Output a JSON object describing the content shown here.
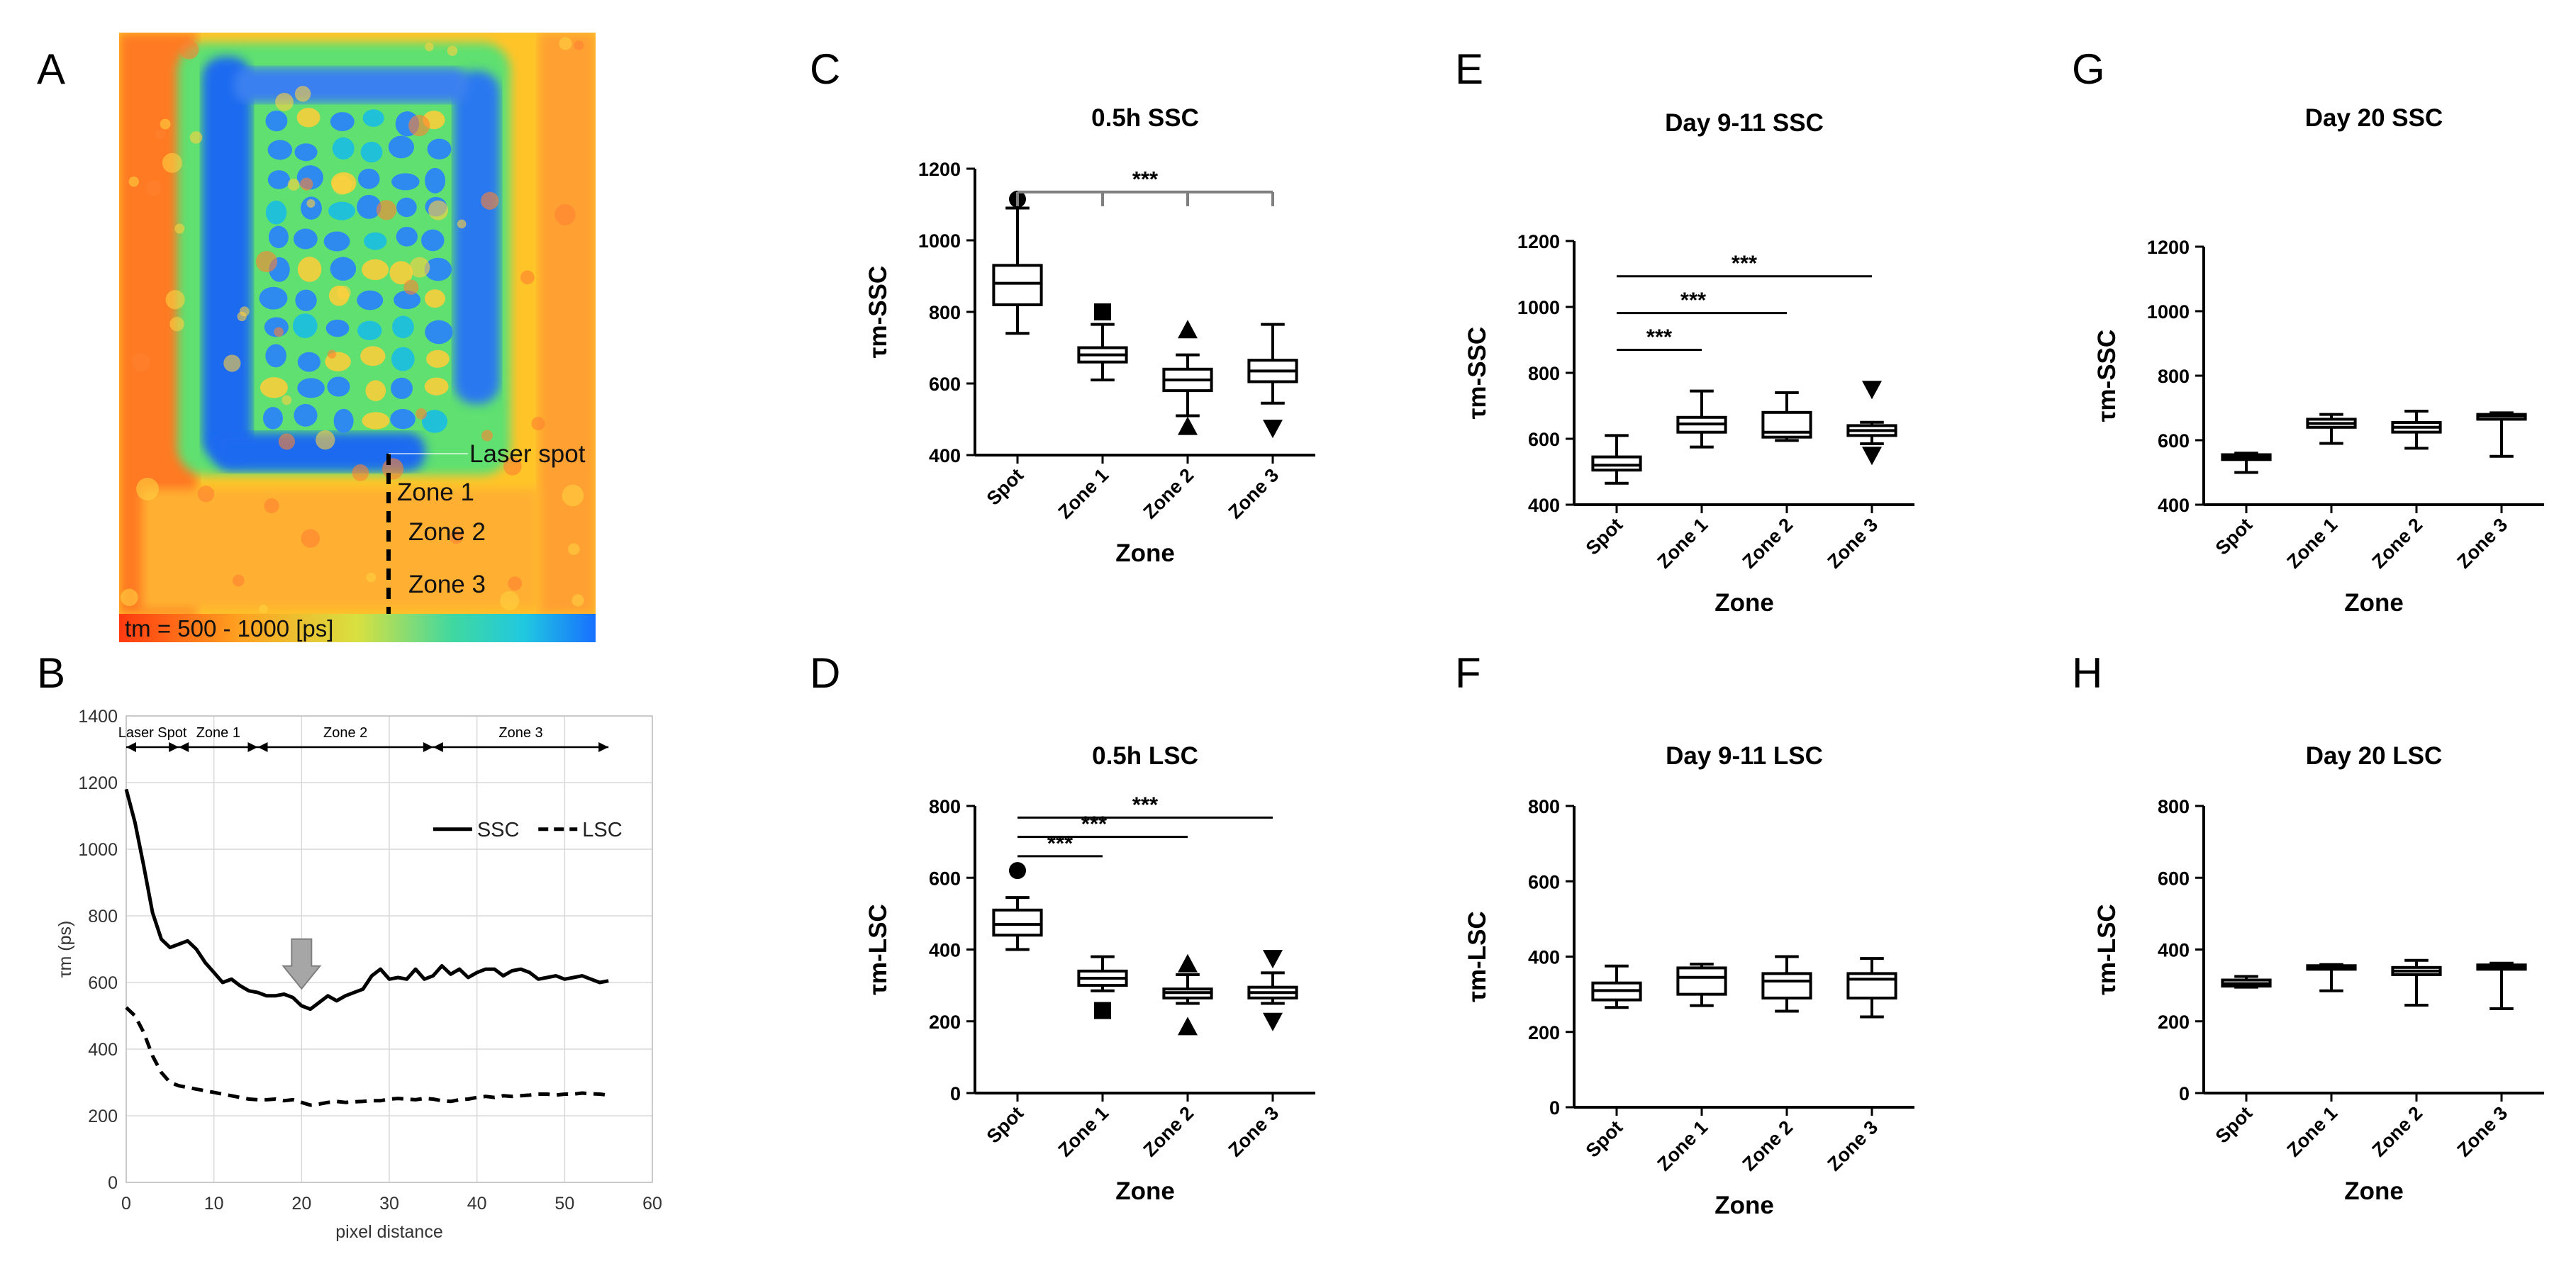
{
  "panel_letters": [
    "A",
    "B",
    "C",
    "D",
    "E",
    "F",
    "G",
    "H"
  ],
  "heatmap": {
    "annotations": [
      "Laser spot",
      "Zone 1",
      "Zone 2",
      "Zone 3"
    ],
    "scale_label": "tm = 500 - 1000 [ps]"
  },
  "chart_data": [
    {
      "panel": "B",
      "type": "line",
      "xlabel": "pixel distance",
      "ylabel": "τm (ps)",
      "xlim": [
        0,
        60
      ],
      "ylim": [
        0,
        1400
      ],
      "xticks": [
        0,
        10,
        20,
        30,
        40,
        50,
        60
      ],
      "yticks": [
        0,
        200,
        400,
        600,
        800,
        1000,
        1200,
        1400
      ],
      "grid": true,
      "legend_position": "top-right",
      "regions": [
        {
          "label": "Laser Spot",
          "from": 0,
          "to": 6
        },
        {
          "label": "Zone 1",
          "from": 6,
          "to": 15
        },
        {
          "label": "Zone 2",
          "from": 15,
          "to": 35
        },
        {
          "label": "Zone 3",
          "from": 35,
          "to": 55
        }
      ],
      "series": [
        {
          "name": "SSC",
          "style": "solid",
          "x": [
            0,
            1,
            2,
            3,
            4,
            5,
            6,
            7,
            8,
            9,
            10,
            11,
            12,
            13,
            14,
            15,
            16,
            17,
            18,
            19,
            20,
            21,
            22,
            23,
            24,
            25,
            26,
            27,
            28,
            29,
            30,
            31,
            32,
            33,
            34,
            35,
            36,
            37,
            38,
            39,
            40,
            41,
            42,
            43,
            44,
            45,
            46,
            47,
            48,
            49,
            50,
            51,
            52,
            53,
            54,
            55
          ],
          "y": [
            1180,
            1080,
            950,
            810,
            730,
            705,
            715,
            725,
            700,
            660,
            630,
            600,
            610,
            590,
            575,
            570,
            560,
            560,
            565,
            555,
            530,
            520,
            540,
            560,
            545,
            560,
            570,
            580,
            620,
            640,
            610,
            615,
            610,
            640,
            610,
            620,
            650,
            625,
            640,
            615,
            630,
            640,
            640,
            620,
            635,
            640,
            630,
            610,
            615,
            620,
            610,
            615,
            620,
            610,
            600,
            605
          ]
        },
        {
          "name": "LSC",
          "style": "dashed",
          "x": [
            0,
            1,
            2,
            3,
            4,
            5,
            6,
            7,
            8,
            9,
            10,
            11,
            12,
            13,
            14,
            15,
            16,
            17,
            18,
            19,
            20,
            21,
            22,
            23,
            24,
            25,
            26,
            27,
            28,
            29,
            30,
            31,
            32,
            33,
            34,
            35,
            36,
            37,
            38,
            39,
            40,
            41,
            42,
            43,
            44,
            45,
            46,
            47,
            48,
            49,
            50,
            51,
            52,
            53,
            54,
            55
          ],
          "y": [
            525,
            500,
            450,
            380,
            330,
            300,
            290,
            285,
            280,
            275,
            270,
            265,
            260,
            255,
            250,
            248,
            248,
            250,
            245,
            248,
            240,
            232,
            235,
            240,
            243,
            240,
            242,
            243,
            245,
            245,
            250,
            252,
            250,
            248,
            252,
            250,
            245,
            243,
            248,
            250,
            255,
            258,
            255,
            260,
            258,
            260,
            262,
            265,
            265,
            262,
            265,
            265,
            268,
            266,
            265,
            262
          ]
        }
      ],
      "annotation": "gray down-arrow at x≈20"
    },
    {
      "panel": "C",
      "type": "box",
      "title": "0.5h SSC",
      "xlabel": "Zone",
      "ylabel": "τm-SSC",
      "categories": [
        "Spot",
        "Zone 1",
        "Zone 2",
        "Zone 3"
      ],
      "ylim": [
        400,
        1200
      ],
      "yticks": [
        400,
        600,
        800,
        1000,
        1200
      ],
      "boxes": [
        {
          "min": 740,
          "q1": 820,
          "median": 880,
          "q3": 930,
          "max": 1090,
          "outliers": [
            1115
          ],
          "outlier_marker": "circle"
        },
        {
          "min": 610,
          "q1": 660,
          "median": 680,
          "q3": 700,
          "max": 765,
          "outliers": [
            800
          ],
          "outlier_marker": "square"
        },
        {
          "min": 510,
          "q1": 580,
          "median": 610,
          "q3": 640,
          "max": 680,
          "outliers": [
            750,
            480
          ],
          "outlier_marker": "triangle-up"
        },
        {
          "min": 545,
          "q1": 605,
          "median": 635,
          "q3": 665,
          "max": 765,
          "outliers": [
            475
          ],
          "outlier_marker": "triangle-down"
        }
      ],
      "significance": [
        {
          "label": "***",
          "from": "Spot",
          "to": [
            "Zone 1",
            "Zone 2",
            "Zone 3"
          ],
          "style": "bracket"
        }
      ]
    },
    {
      "panel": "D",
      "type": "box",
      "title": "0.5h LSC",
      "xlabel": "Zone",
      "ylabel": "τm-LSC",
      "categories": [
        "Spot",
        "Zone 1",
        "Zone 2",
        "Zone 3"
      ],
      "ylim": [
        0,
        800
      ],
      "yticks": [
        0,
        200,
        400,
        600,
        800
      ],
      "boxes": [
        {
          "min": 400,
          "q1": 440,
          "median": 470,
          "q3": 510,
          "max": 545,
          "outliers": [
            620
          ],
          "outlier_marker": "circle"
        },
        {
          "min": 285,
          "q1": 300,
          "median": 320,
          "q3": 340,
          "max": 380,
          "outliers": [
            230
          ],
          "outlier_marker": "square"
        },
        {
          "min": 250,
          "q1": 265,
          "median": 280,
          "q3": 290,
          "max": 330,
          "outliers": [
            360,
            185
          ],
          "outlier_marker": "triangle-up"
        },
        {
          "min": 250,
          "q1": 265,
          "median": 280,
          "q3": 295,
          "max": 335,
          "outliers": [
            375,
            200
          ],
          "outlier_marker": "triangle-down"
        }
      ],
      "significance": [
        {
          "label": "***",
          "from": "Spot",
          "to": "Zone 1"
        },
        {
          "label": "***",
          "from": "Spot",
          "to": "Zone 2"
        },
        {
          "label": "***",
          "from": "Spot",
          "to": "Zone 3"
        }
      ]
    },
    {
      "panel": "E",
      "type": "box",
      "title": "Day 9-11 SSC",
      "xlabel": "Zone",
      "ylabel": "τm-SSC",
      "categories": [
        "Spot",
        "Zone 1",
        "Zone 2",
        "Zone 3"
      ],
      "ylim": [
        400,
        1200
      ],
      "yticks": [
        400,
        600,
        800,
        1000,
        1200
      ],
      "boxes": [
        {
          "min": 465,
          "q1": 505,
          "median": 520,
          "q3": 545,
          "max": 610,
          "outliers": []
        },
        {
          "min": 575,
          "q1": 620,
          "median": 645,
          "q3": 665,
          "max": 745,
          "outliers": []
        },
        {
          "min": 595,
          "q1": 605,
          "median": 620,
          "q3": 680,
          "max": 740,
          "outliers": []
        },
        {
          "min": 585,
          "q1": 610,
          "median": 625,
          "q3": 640,
          "max": 650,
          "outliers": [
            750,
            550
          ],
          "outlier_marker": "triangle-down"
        }
      ],
      "significance": [
        {
          "label": "***",
          "from": "Spot",
          "to": "Zone 1"
        },
        {
          "label": "***",
          "from": "Spot",
          "to": "Zone 2"
        },
        {
          "label": "***",
          "from": "Spot",
          "to": "Zone 3"
        }
      ]
    },
    {
      "panel": "F",
      "type": "box",
      "title": "Day 9-11 LSC",
      "xlabel": "Zone",
      "ylabel": "τm-LSC",
      "categories": [
        "Spot",
        "Zone 1",
        "Zone 2",
        "Zone 3"
      ],
      "ylim": [
        0,
        800
      ],
      "yticks": [
        0,
        200,
        400,
        600,
        800
      ],
      "boxes": [
        {
          "min": 265,
          "q1": 285,
          "median": 310,
          "q3": 330,
          "max": 375,
          "outliers": []
        },
        {
          "min": 270,
          "q1": 300,
          "median": 345,
          "q3": 370,
          "max": 380,
          "outliers": []
        },
        {
          "min": 255,
          "q1": 290,
          "median": 335,
          "q3": 355,
          "max": 400,
          "outliers": []
        },
        {
          "min": 240,
          "q1": 290,
          "median": 340,
          "q3": 355,
          "max": 395,
          "outliers": []
        }
      ]
    },
    {
      "panel": "G",
      "type": "box",
      "title": "Day 20 SSC",
      "xlabel": "Zone",
      "ylabel": "τm-SSC",
      "categories": [
        "Spot",
        "Zone 1",
        "Zone 2",
        "Zone 3"
      ],
      "ylim": [
        400,
        1200
      ],
      "yticks": [
        400,
        600,
        800,
        1000,
        1200
      ],
      "boxes": [
        {
          "min": 500,
          "q1": 540,
          "median": 548,
          "q3": 555,
          "max": 560,
          "outliers": []
        },
        {
          "min": 590,
          "q1": 640,
          "median": 652,
          "q3": 665,
          "max": 680,
          "outliers": []
        },
        {
          "min": 575,
          "q1": 625,
          "median": 640,
          "q3": 655,
          "max": 690,
          "outliers": []
        },
        {
          "min": 550,
          "q1": 665,
          "median": 675,
          "q3": 680,
          "max": 685,
          "outliers": []
        }
      ]
    },
    {
      "panel": "H",
      "type": "box",
      "title": "Day 20 LSC",
      "xlabel": "Zone",
      "ylabel": "τm-LSC",
      "categories": [
        "Spot",
        "Zone 1",
        "Zone 2",
        "Zone 3"
      ],
      "ylim": [
        0,
        800
      ],
      "yticks": [
        0,
        200,
        400,
        600,
        800
      ],
      "boxes": [
        {
          "min": 295,
          "q1": 298,
          "median": 305,
          "q3": 315,
          "max": 325,
          "outliers": []
        },
        {
          "min": 285,
          "q1": 345,
          "median": 350,
          "q3": 355,
          "max": 358,
          "outliers": []
        },
        {
          "min": 245,
          "q1": 330,
          "median": 340,
          "q3": 350,
          "max": 370,
          "outliers": []
        },
        {
          "min": 235,
          "q1": 345,
          "median": 350,
          "q3": 357,
          "max": 362,
          "outliers": []
        }
      ]
    }
  ]
}
